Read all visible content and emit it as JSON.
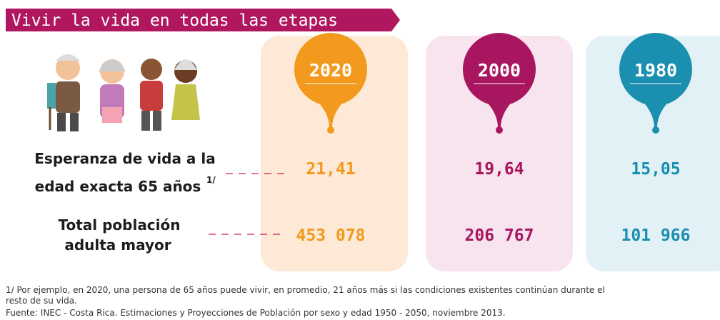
{
  "header": {
    "title": "Vivir la vida en todas las etapas"
  },
  "row_labels": [
    {
      "lines": [
        "Esperanza de vida a la",
        "edad exacta 65 años"
      ],
      "note": "1/"
    },
    {
      "lines": [
        "Total población",
        "adulta mayor"
      ]
    }
  ],
  "columns": [
    {
      "year": "2020",
      "life_expectancy": "21,41",
      "population": "453 078"
    },
    {
      "year": "2000",
      "life_expectancy": "19,64",
      "population": "206 767"
    },
    {
      "year": "1980",
      "life_expectancy": "15,05",
      "population": "101 966"
    }
  ],
  "footnote": [
    "1/ Por ejemplo, en 2020, una persona de 65 años puede vivir, en promedio, 21 años más si las condiciones existentes continúan durante el",
    "resto de su vida."
  ],
  "source": "Fuente: INEC - Costa Rica. Estimaciones y Proyecciones de Población por sexo y edad 1950 - 2050, noviembre 2013."
}
